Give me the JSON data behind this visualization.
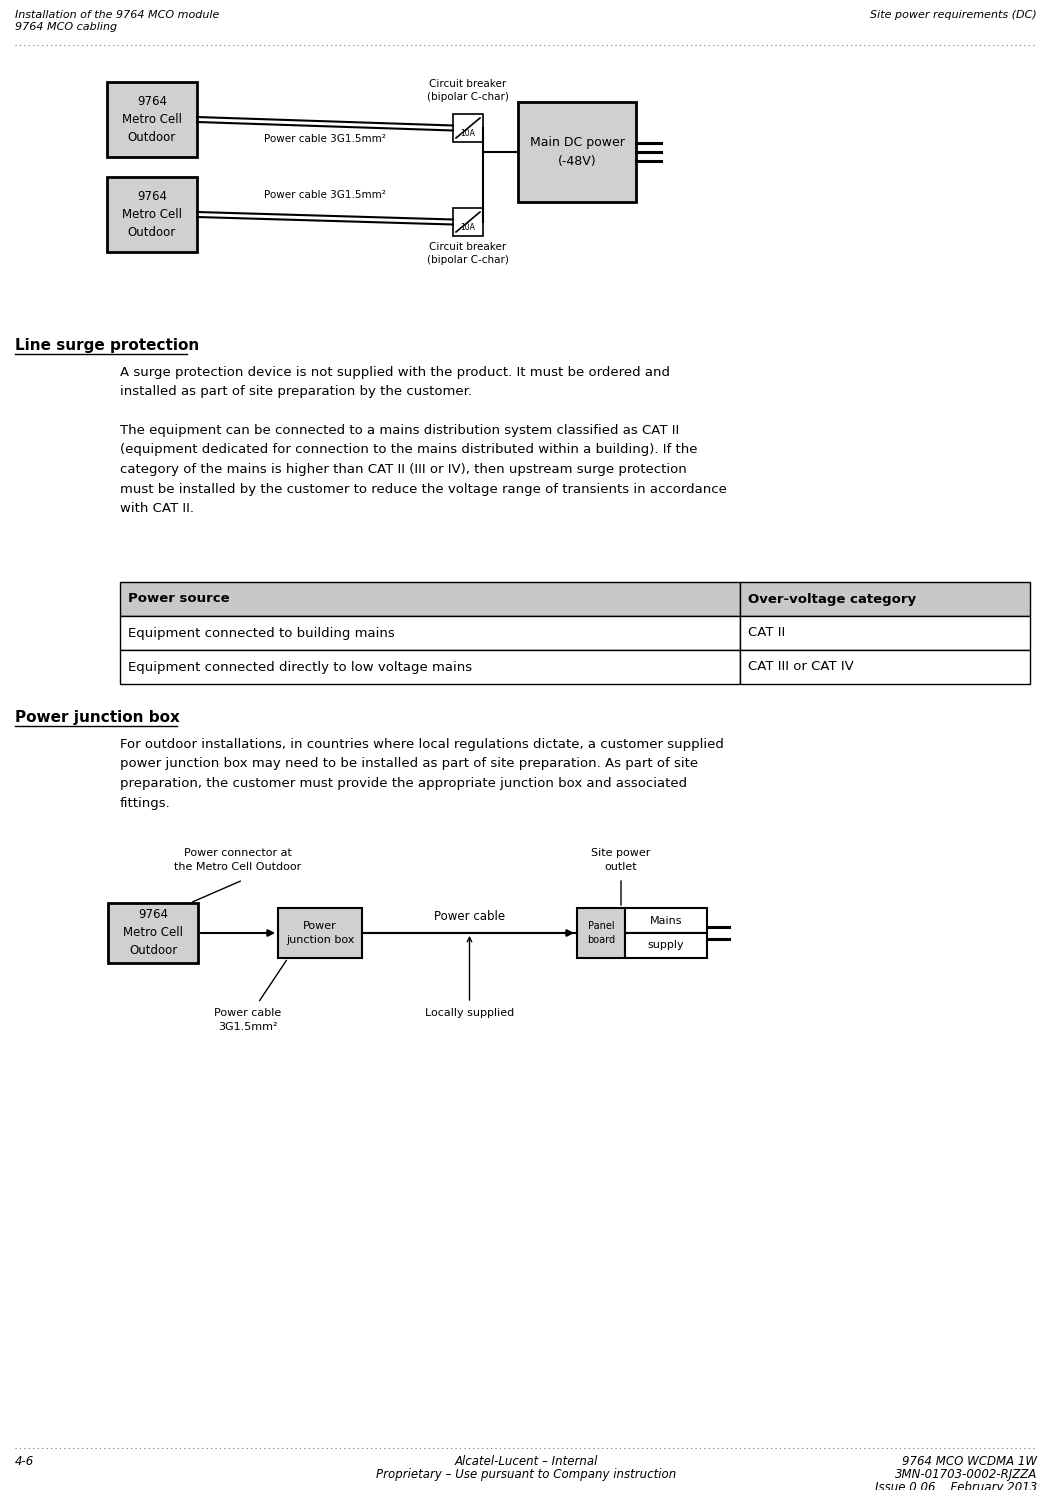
{
  "header_left_line1": "Installation of the 9764 MCO module",
  "header_left_line2": "9764 MCO cabling",
  "header_right": "Site power requirements (DC)",
  "footer_left": "4-6",
  "footer_center_line1": "Alcatel-Lucent – Internal",
  "footer_center_line2": "Proprietary – Use pursuant to Company instruction",
  "footer_right_line1": "9764 MCO WCDMA 1W",
  "footer_right_line2": "3MN-01703-0002-RJZZA",
  "footer_right_line3": "Issue 0.06    February 2013",
  "section1_title": "Line surge protection",
  "section1_para1": "A surge protection device is not supplied with the product. It must be ordered and\ninstalled as part of site preparation by the customer.",
  "section1_para2": "The equipment can be connected to a mains distribution system classified as CAT II\n(equipment dedicated for connection to the mains distributed within a building). If the\ncategory of the mains is higher than CAT II (III or IV), then upstream surge protection\nmust be installed by the customer to reduce the voltage range of transients in accordance\nwith CAT II.",
  "table_header_col1": "Power source",
  "table_header_col2": "Over-voltage category",
  "table_row1_col1": "Equipment connected to building mains",
  "table_row1_col2": "CAT II",
  "table_row2_col1": "Equipment connected directly to low voltage mains",
  "table_row2_col2": "CAT III or CAT IV",
  "section2_title": "Power junction box",
  "section2_para1": "For outdoor installations, in countries where local regulations dictate, a customer supplied\npower junction box may need to be installed as part of site preparation. As part of site\npreparation, the customer must provide the appropriate junction box and associated\nfittings.",
  "bg_color": "#ffffff",
  "table_header_bg": "#c8c8c8",
  "box_fill": "#d0d0d0"
}
